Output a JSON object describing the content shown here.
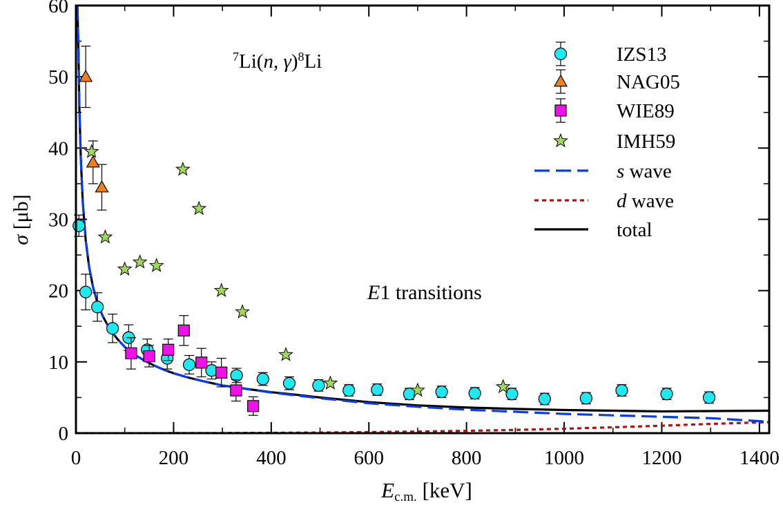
{
  "chart_data": {
    "type": "scatter",
    "annotation_reaction": {
      "pre": "7",
      "a": "Li(",
      "b": "n",
      "c": ", ",
      "d": "γ",
      "e": ")",
      "sup": "8",
      "f": "Li"
    },
    "annotation_transition": {
      "italic": "E",
      "rest": "1 transitions"
    },
    "xlabel": {
      "main": "E",
      "sub": "c.m.",
      "unit": " [keV]"
    },
    "ylabel": {
      "sym": "σ",
      "unit": " [μb]"
    },
    "xlim": [
      0,
      1420
    ],
    "ylim": [
      0,
      60
    ],
    "x_ticks": [
      0,
      200,
      400,
      600,
      800,
      1000,
      1200,
      1400
    ],
    "y_ticks": [
      0,
      10,
      20,
      30,
      40,
      50,
      60
    ],
    "x_minor_step": 100,
    "y_minor_step": 5,
    "legend_position": "top-right",
    "series": [
      {
        "name": "IZS13",
        "marker": "circle",
        "color": "#20e8f0",
        "points": [
          [
            6,
            29.1,
            1.5
          ],
          [
            20,
            19.8,
            2.5
          ],
          [
            44,
            17.7,
            2.0
          ],
          [
            75,
            14.7,
            2.0
          ],
          [
            108,
            13.4,
            1.8
          ],
          [
            146,
            11.7,
            1.5
          ],
          [
            187,
            10.5,
            1.5
          ],
          [
            232,
            9.6,
            1.3
          ],
          [
            278,
            8.8,
            1.2
          ],
          [
            329,
            8.1,
            1.0
          ],
          [
            383,
            7.6,
            0.9
          ],
          [
            437,
            7.0,
            0.9
          ],
          [
            497,
            6.7,
            0.8
          ],
          [
            559,
            6.0,
            0.8
          ],
          [
            617,
            6.1,
            0.8
          ],
          [
            683,
            5.5,
            0.8
          ],
          [
            749,
            5.8,
            0.8
          ],
          [
            817,
            5.6,
            0.8
          ],
          [
            893,
            5.5,
            0.8
          ],
          [
            960,
            4.8,
            0.8
          ],
          [
            1045,
            4.9,
            0.8
          ],
          [
            1118,
            6.0,
            0.8
          ],
          [
            1210,
            5.5,
            0.8
          ],
          [
            1297,
            5.0,
            0.8
          ]
        ]
      },
      {
        "name": "NAG05",
        "marker": "triangle",
        "color": "#f08018",
        "points": [
          [
            20,
            50.0,
            4.3
          ],
          [
            35,
            38.0,
            3.0
          ],
          [
            53,
            34.5,
            3.2
          ]
        ]
      },
      {
        "name": "WIE89",
        "marker": "square",
        "color": "#f010e8",
        "points": [
          [
            113,
            11.2,
            2.2
          ],
          [
            150,
            10.8,
            1.5
          ],
          [
            189,
            11.7,
            1.5
          ],
          [
            221,
            14.4,
            2.1
          ],
          [
            257,
            9.9,
            2.0
          ],
          [
            298,
            8.5,
            2.0
          ],
          [
            328,
            6.0,
            1.5
          ],
          [
            363,
            3.8,
            1.3
          ]
        ]
      },
      {
        "name": "IMH59",
        "marker": "star",
        "color": "#a0d858",
        "points": [
          [
            32,
            39.5
          ],
          [
            60,
            27.5
          ],
          [
            100,
            23.0
          ],
          [
            131,
            24.0
          ],
          [
            165,
            23.5
          ],
          [
            219,
            37.0
          ],
          [
            252,
            31.5
          ],
          [
            298,
            20.0
          ],
          [
            341,
            17.0
          ],
          [
            430,
            11.0
          ],
          [
            521,
            7.0
          ],
          [
            700,
            6.0
          ],
          [
            875,
            6.5
          ]
        ]
      }
    ],
    "curves": [
      {
        "name": "s wave",
        "label_italic": "s",
        "label_rest": " wave",
        "style": "dashed",
        "color": "#0a3af0",
        "x": [
          3,
          5,
          7,
          10,
          14,
          20,
          27,
          35,
          45,
          55,
          70,
          85,
          100,
          120,
          140,
          160,
          180,
          200,
          230,
          260,
          300,
          350,
          400,
          450,
          500,
          600,
          700,
          800,
          900,
          1000,
          1100,
          1200,
          1300,
          1420
        ],
        "y": [
          60,
          54.2,
          45.9,
          38.4,
          32.4,
          27.1,
          23.3,
          20.5,
          18.1,
          16.4,
          14.5,
          13.2,
          12.1,
          11.0,
          10.2,
          9.5,
          8.9,
          8.4,
          7.8,
          7.3,
          6.7,
          6.2,
          5.7,
          5.3,
          4.9,
          4.2,
          3.7,
          3.3,
          3.0,
          2.7,
          2.5,
          2.3,
          2.1,
          1.6
        ]
      },
      {
        "name": "d wave",
        "label_italic": "d",
        "label_rest": " wave",
        "style": "dotted",
        "color": "#b01010",
        "x": [
          0,
          100,
          200,
          300,
          400,
          500,
          600,
          700,
          800,
          900,
          1000,
          1100,
          1200,
          1300,
          1420
        ],
        "y": [
          0,
          0,
          0.01,
          0.02,
          0.05,
          0.09,
          0.15,
          0.23,
          0.33,
          0.46,
          0.62,
          0.82,
          1.05,
          1.3,
          1.55
        ]
      },
      {
        "name": "total",
        "label_italic": "",
        "label_rest": "total",
        "style": "solid",
        "color": "#000000",
        "x": [
          3,
          5,
          7,
          10,
          14,
          20,
          27,
          35,
          45,
          55,
          70,
          85,
          100,
          120,
          140,
          160,
          180,
          200,
          230,
          260,
          300,
          350,
          400,
          450,
          500,
          600,
          700,
          800,
          900,
          1000,
          1100,
          1200,
          1300,
          1420
        ],
        "y": [
          60,
          54.2,
          45.9,
          38.4,
          32.4,
          27.1,
          23.3,
          20.5,
          18.1,
          16.4,
          14.5,
          13.2,
          12.1,
          11.0,
          10.2,
          9.5,
          8.9,
          8.4,
          7.8,
          7.3,
          6.7,
          6.2,
          5.75,
          5.4,
          5.0,
          4.35,
          3.9,
          3.6,
          3.4,
          3.25,
          3.15,
          3.05,
          3.1,
          3.15
        ]
      }
    ]
  }
}
